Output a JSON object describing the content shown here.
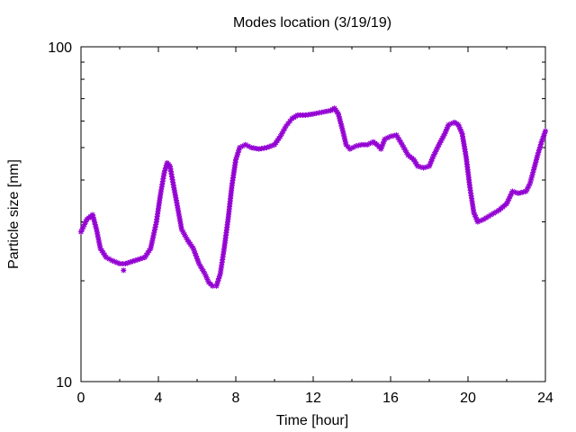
{
  "chart_data": {
    "type": "scatter",
    "title": "Modes location (3/19/19)",
    "xlabel": "Time [hour]",
    "ylabel": "Particle size [nm]",
    "xlim": [
      0,
      24
    ],
    "ylim": [
      10,
      100
    ],
    "yscale": "log",
    "grid": false,
    "xticks": [
      0,
      4,
      8,
      12,
      16,
      20,
      24
    ],
    "xtick_labels": [
      "0",
      "4",
      "8",
      "12",
      "16",
      "20",
      "24"
    ],
    "yticks": [
      10,
      100
    ],
    "ytick_labels": [
      "10",
      "100"
    ],
    "marker": "asterisk",
    "color": "#9400d3",
    "series": [
      {
        "points": [
          [
            0.0,
            28.0
          ],
          [
            0.3,
            30.5
          ],
          [
            0.6,
            31.5
          ],
          [
            0.8,
            28.5
          ],
          [
            1.0,
            25.0
          ],
          [
            1.3,
            23.5
          ],
          [
            1.6,
            23.0
          ],
          [
            2.0,
            22.5
          ],
          [
            2.3,
            22.5
          ],
          [
            2.8,
            23.0
          ],
          [
            3.3,
            23.5
          ],
          [
            3.6,
            25.0
          ],
          [
            3.9,
            30.0
          ],
          [
            4.1,
            36.0
          ],
          [
            4.3,
            42.0
          ],
          [
            4.45,
            45.0
          ],
          [
            4.6,
            44.0
          ],
          [
            4.8,
            38.0
          ],
          [
            5.0,
            33.0
          ],
          [
            5.2,
            28.5
          ],
          [
            5.5,
            26.5
          ],
          [
            5.8,
            25.0
          ],
          [
            6.1,
            22.5
          ],
          [
            6.4,
            21.0
          ],
          [
            6.6,
            19.8
          ],
          [
            6.8,
            19.3
          ],
          [
            7.0,
            19.3
          ],
          [
            7.2,
            21.0
          ],
          [
            7.4,
            25.0
          ],
          [
            7.6,
            30.5
          ],
          [
            7.8,
            38.5
          ],
          [
            8.0,
            46.0
          ],
          [
            8.2,
            50.0
          ],
          [
            8.5,
            51.0
          ],
          [
            8.8,
            50.0
          ],
          [
            9.2,
            49.5
          ],
          [
            9.6,
            50.0
          ],
          [
            10.0,
            51.0
          ],
          [
            10.3,
            54.0
          ],
          [
            10.6,
            58.0
          ],
          [
            10.9,
            61.0
          ],
          [
            11.2,
            62.5
          ],
          [
            11.6,
            62.5
          ],
          [
            12.0,
            63.0
          ],
          [
            12.3,
            63.5
          ],
          [
            12.6,
            64.0
          ],
          [
            12.9,
            64.5
          ],
          [
            13.1,
            65.5
          ],
          [
            13.3,
            63.0
          ],
          [
            13.5,
            57.0
          ],
          [
            13.7,
            51.0
          ],
          [
            13.9,
            49.5
          ],
          [
            14.2,
            50.5
          ],
          [
            14.5,
            51.0
          ],
          [
            14.8,
            51.0
          ],
          [
            15.1,
            52.0
          ],
          [
            15.3,
            51.0
          ],
          [
            15.5,
            49.5
          ],
          [
            15.7,
            53.0
          ],
          [
            16.0,
            54.0
          ],
          [
            16.3,
            54.5
          ],
          [
            16.6,
            51.0
          ],
          [
            16.9,
            47.5
          ],
          [
            17.2,
            46.0
          ],
          [
            17.4,
            44.0
          ],
          [
            17.7,
            43.5
          ],
          [
            18.0,
            44.0
          ],
          [
            18.2,
            47.0
          ],
          [
            18.5,
            51.0
          ],
          [
            18.8,
            55.0
          ],
          [
            19.0,
            58.5
          ],
          [
            19.3,
            59.5
          ],
          [
            19.5,
            58.5
          ],
          [
            19.7,
            55.0
          ],
          [
            19.9,
            47.0
          ],
          [
            20.1,
            38.0
          ],
          [
            20.3,
            32.0
          ],
          [
            20.5,
            30.0
          ],
          [
            20.8,
            30.5
          ],
          [
            21.2,
            31.5
          ],
          [
            21.6,
            32.5
          ],
          [
            22.0,
            34.0
          ],
          [
            22.3,
            37.0
          ],
          [
            22.6,
            36.5
          ],
          [
            23.0,
            37.0
          ],
          [
            23.2,
            39.0
          ],
          [
            23.4,
            43.0
          ],
          [
            23.6,
            47.5
          ],
          [
            23.8,
            52.0
          ],
          [
            24.0,
            56.0
          ]
        ]
      }
    ],
    "outliers": [
      [
        2.2,
        21.5
      ]
    ]
  }
}
